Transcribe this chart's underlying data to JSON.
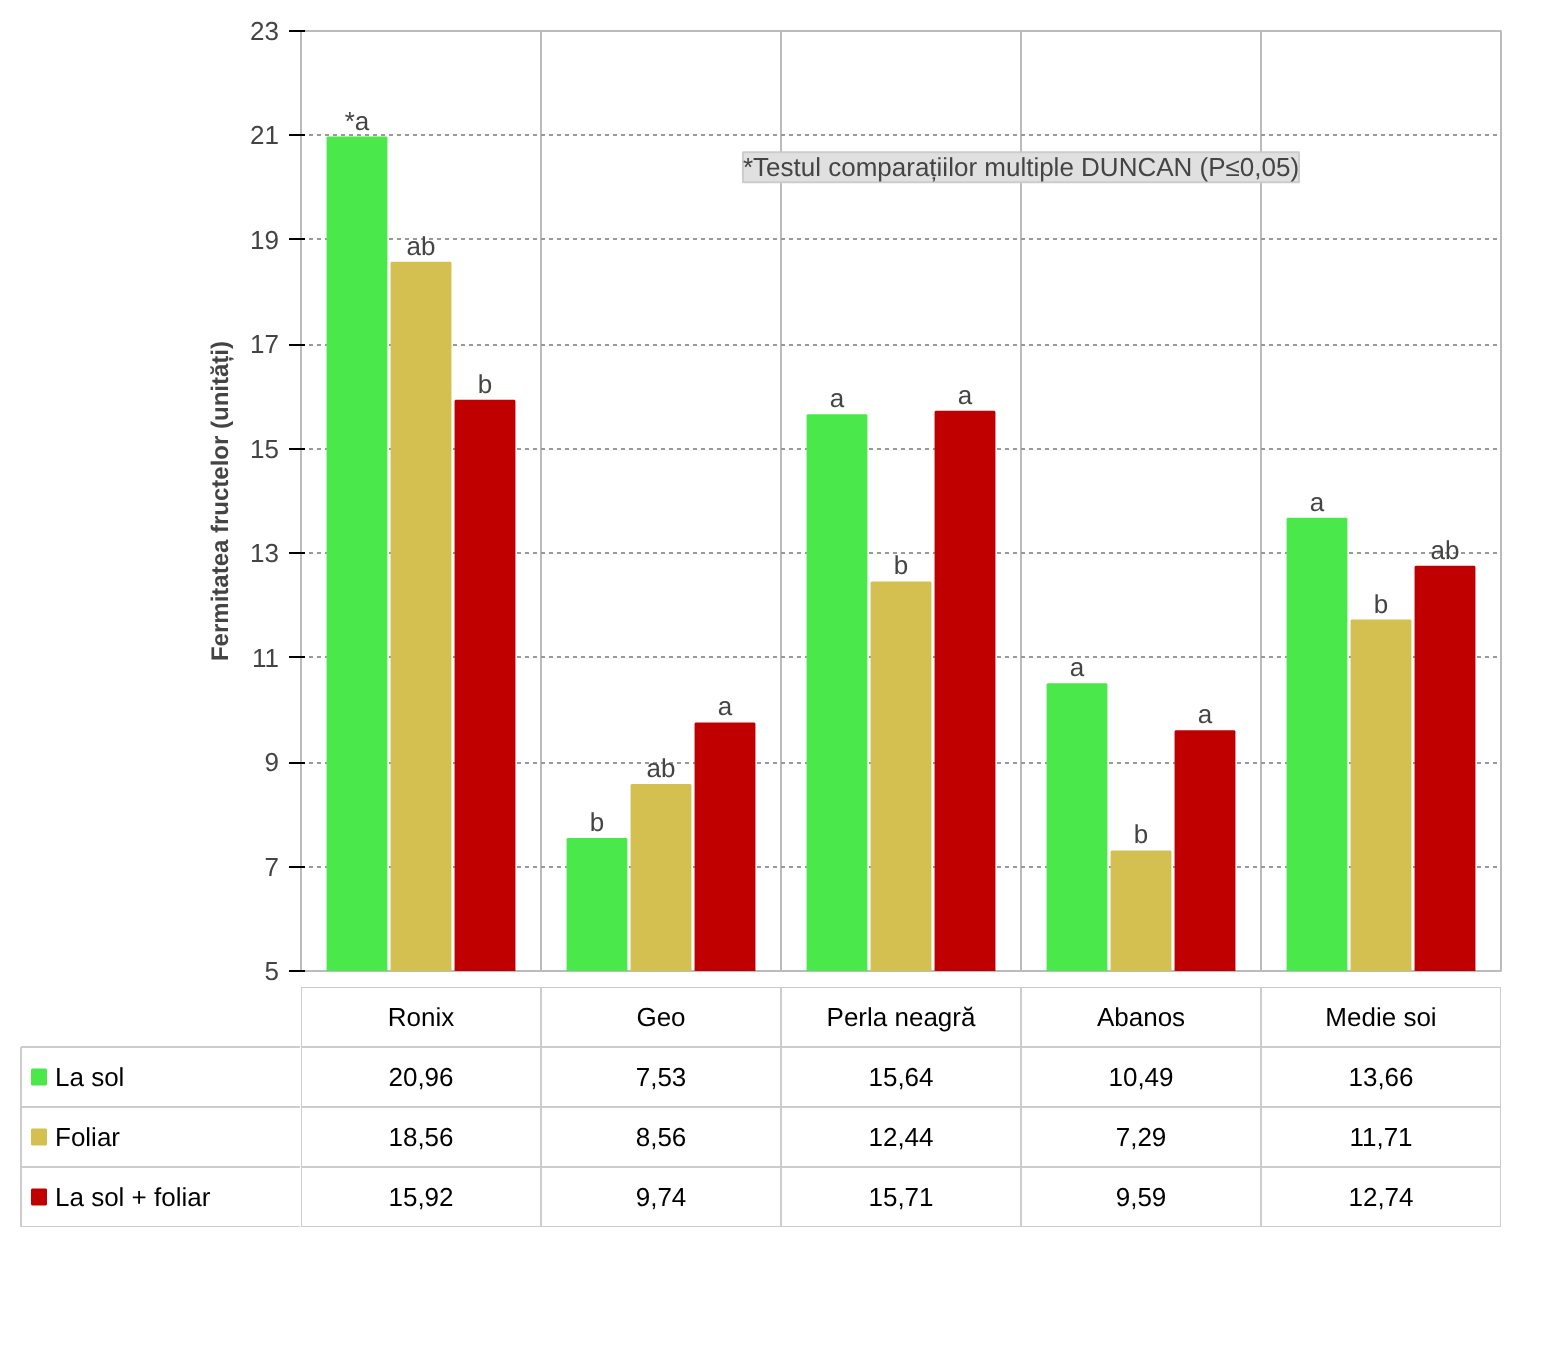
{
  "chart_data": {
    "type": "bar",
    "ylabel": "Fermitatea fructelor (unități)",
    "categories": [
      "Ronix",
      "Geo",
      "Perla neagră",
      "Abanos",
      "Medie soi"
    ],
    "series": [
      {
        "name": "La sol",
        "color": "#4be84b",
        "values": [
          20.96,
          7.53,
          15.64,
          10.49,
          13.66
        ],
        "value_labels": [
          "20,96",
          "7,53",
          "15,64",
          "10,49",
          "13,66"
        ]
      },
      {
        "name": "Foliar",
        "color": "#d4c050",
        "values": [
          18.56,
          8.56,
          12.44,
          7.29,
          11.71
        ],
        "value_labels": [
          "18,56",
          "8,56",
          "12,44",
          "7,29",
          "11,71"
        ]
      },
      {
        "name": "La sol + foliar",
        "color": "#c00000",
        "values": [
          15.92,
          9.74,
          15.71,
          9.59,
          12.74
        ],
        "value_labels": [
          "15,92",
          "9,74",
          "15,71",
          "9,59",
          "12,74"
        ]
      }
    ],
    "ylim": [
      5,
      23
    ],
    "yticks": [
      5,
      7,
      9,
      11,
      13,
      15,
      17,
      19,
      21,
      23
    ],
    "grid": true,
    "legend": "bottom",
    "annotations": [
      "*Testul comparațiilor multiple DUNCAN (P≤0,05)",
      "*a",
      "ab",
      "b",
      "b",
      "ab",
      "a",
      "a",
      "b",
      "a",
      "a",
      "b",
      "a",
      "a",
      "b",
      "ab"
    ]
  }
}
